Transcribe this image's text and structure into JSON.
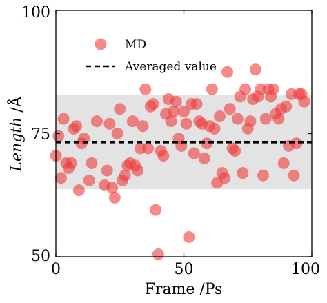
{
  "chart_data": {
    "type": "scatter",
    "xlabel": "Frame /Ps",
    "ylabel_italic": "Length",
    "ylabel_unit": " /Å",
    "xlim": [
      0,
      100
    ],
    "ylim": [
      50,
      100
    ],
    "xticks": [
      0,
      50,
      100
    ],
    "yticks": [
      50,
      75,
      100
    ],
    "averaged_value": 73.2,
    "band": [
      63.7,
      82.8
    ],
    "colors": {
      "points": "#f03c3c",
      "band": "#e3e3e3",
      "average_line": "#000000"
    },
    "legend": {
      "position": "upper-left",
      "entries": [
        {
          "label": "MD",
          "marker": "circle"
        },
        {
          "label": "Averaged value",
          "marker": "dashed-line"
        }
      ]
    },
    "series": [
      {
        "name": "MD",
        "points": [
          [
            0,
            70.5
          ],
          [
            1,
            74.5
          ],
          [
            2,
            66.0
          ],
          [
            3,
            78.0
          ],
          [
            4,
            69.0
          ],
          [
            5,
            68.0
          ],
          [
            6,
            69.0
          ],
          [
            7,
            76.0
          ],
          [
            8,
            76.5
          ],
          [
            9,
            63.5
          ],
          [
            10,
            73.0
          ],
          [
            11,
            74.0
          ],
          [
            13,
            65.5
          ],
          [
            14,
            69.0
          ],
          [
            16,
            77.5
          ],
          [
            19,
            64.5
          ],
          [
            20,
            67.5
          ],
          [
            21,
            77.0
          ],
          [
            22,
            64.0
          ],
          [
            23,
            62.0
          ],
          [
            24,
            75.0
          ],
          [
            25,
            80.0
          ],
          [
            26,
            65.5
          ],
          [
            27,
            66.5
          ],
          [
            28,
            68.5
          ],
          [
            29,
            69.0
          ],
          [
            30,
            77.5
          ],
          [
            31,
            68.5
          ],
          [
            32,
            67.5
          ],
          [
            33,
            72.0
          ],
          [
            34,
            76.5
          ],
          [
            35,
            84.0
          ],
          [
            36,
            72.0
          ],
          [
            37,
            80.5
          ],
          [
            38,
            81.0
          ],
          [
            39,
            59.5
          ],
          [
            40,
            50.5
          ],
          [
            41,
            71.5
          ],
          [
            42,
            70.5
          ],
          [
            43,
            79.0
          ],
          [
            44,
            82.0
          ],
          [
            45,
            77.5
          ],
          [
            46,
            79.5
          ],
          [
            47,
            81.5
          ],
          [
            48,
            74.0
          ],
          [
            49,
            72.5
          ],
          [
            50,
            79.5
          ],
          [
            51,
            77.0
          ],
          [
            52,
            54.0
          ],
          [
            53,
            81.0
          ],
          [
            54,
            71.0
          ],
          [
            55,
            81.0
          ],
          [
            56,
            77.5
          ],
          [
            57,
            77.0
          ],
          [
            58,
            70.0
          ],
          [
            59,
            73.0
          ],
          [
            60,
            76.5
          ],
          [
            61,
            84.0
          ],
          [
            62,
            76.0
          ],
          [
            63,
            65.0
          ],
          [
            64,
            78.5
          ],
          [
            65,
            67.0
          ],
          [
            66,
            66.0
          ],
          [
            67,
            87.5
          ],
          [
            68,
            80.0
          ],
          [
            69,
            72.0
          ],
          [
            70,
            71.5
          ],
          [
            71,
            78.0
          ],
          [
            72,
            82.5
          ],
          [
            73,
            67.0
          ],
          [
            74,
            84.0
          ],
          [
            75,
            76.0
          ],
          [
            76,
            77.5
          ],
          [
            77,
            82.0
          ],
          [
            78,
            88.0
          ],
          [
            79,
            82.5
          ],
          [
            80,
            84.0
          ],
          [
            81,
            66.5
          ],
          [
            82,
            78.0
          ],
          [
            83,
            84.0
          ],
          [
            84,
            82.5
          ],
          [
            85,
            84.0
          ],
          [
            86,
            79.0
          ],
          [
            87,
            78.0
          ],
          [
            88,
            80.0
          ],
          [
            89,
            69.0
          ],
          [
            90,
            80.5
          ],
          [
            91,
            72.5
          ],
          [
            92,
            83.0
          ],
          [
            93,
            66.5
          ],
          [
            94,
            73.0
          ],
          [
            95,
            83.0
          ],
          [
            96,
            83.0
          ],
          [
            97,
            81.5
          ]
        ]
      }
    ]
  }
}
